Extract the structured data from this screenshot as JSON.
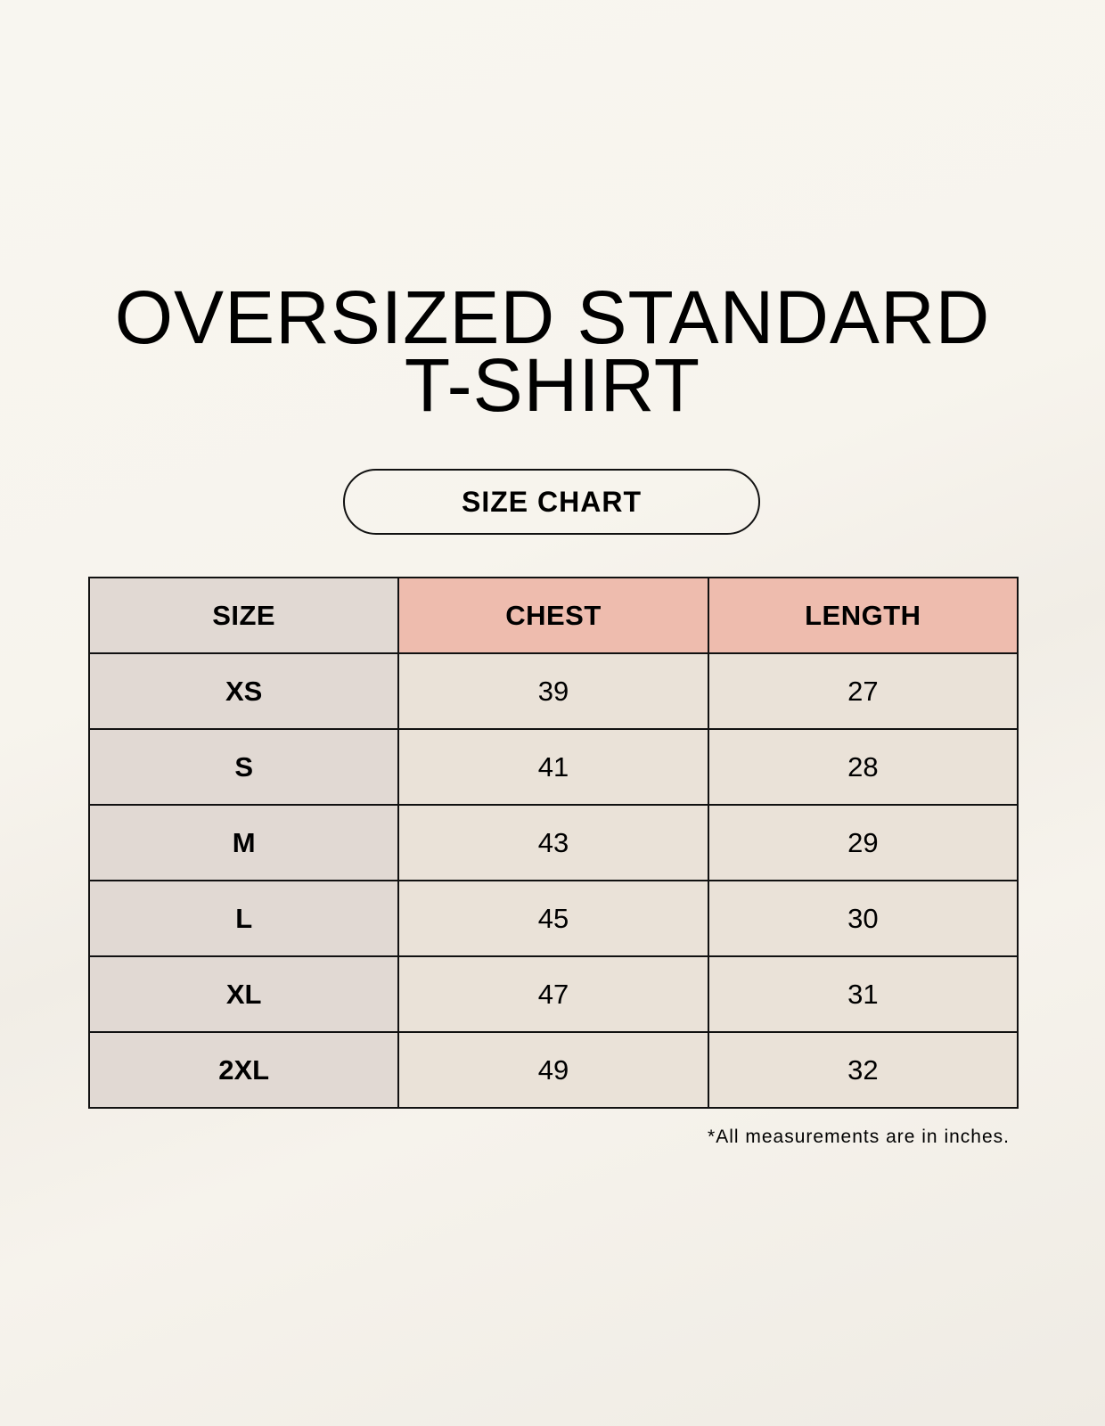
{
  "title_lines": [
    "OVERSIZED STANDARD",
    "T-SHIRT"
  ],
  "badge": "SIZE CHART",
  "table": {
    "headers": [
      "SIZE",
      "CHEST",
      "LENGTH"
    ],
    "rows": [
      [
        "XS",
        "39",
        "27"
      ],
      [
        "S",
        "41",
        "28"
      ],
      [
        "M",
        "43",
        "29"
      ],
      [
        "L",
        "45",
        "30"
      ],
      [
        "XL",
        "47",
        "31"
      ],
      [
        "2XL",
        "49",
        "32"
      ]
    ]
  },
  "footnote": "*All measurements are in inches.",
  "colors": {
    "header_accent": "#eebcae",
    "size_column": "#e1d9d3",
    "cell": "#eae2d8"
  }
}
